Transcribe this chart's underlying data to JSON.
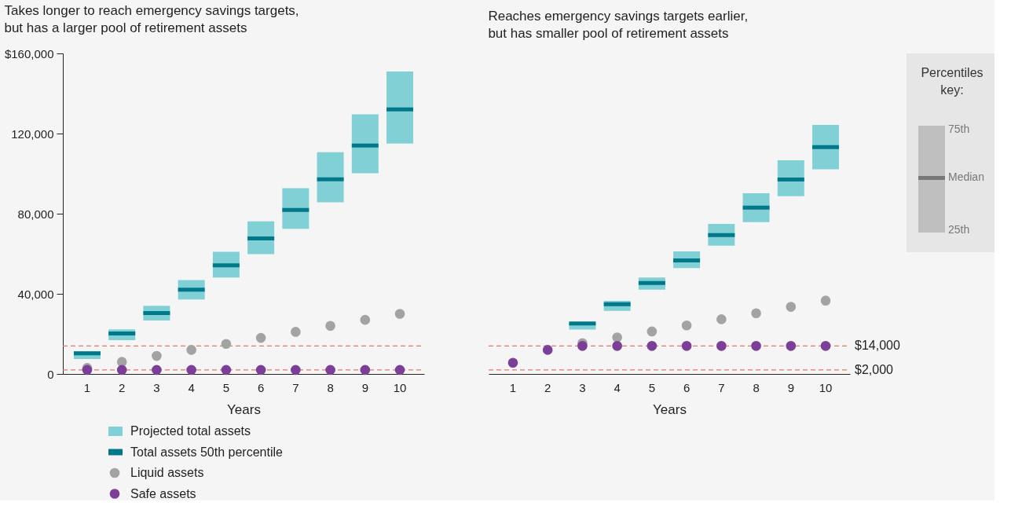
{
  "chart_data": [
    {
      "type": "box",
      "title": "Takes longer to reach emergency savings targets, but has a larger pool of retirement assets",
      "xlabel": "Years",
      "categories": [
        "1",
        "2",
        "3",
        "4",
        "5",
        "6",
        "7",
        "8",
        "9",
        "10"
      ],
      "series": [
        {
          "name": "Projected total assets",
          "type": "box",
          "color": "#81d0d6",
          "boxes": [
            {
              "low": 7500,
              "q1": 7500,
              "median": 10300,
              "q3": 11400,
              "high": 11400
            },
            {
              "low": 16900,
              "q1": 16900,
              "median": 20200,
              "q3": 22300,
              "high": 22300
            },
            {
              "low": 26700,
              "q1": 26700,
              "median": 30400,
              "q3": 34000,
              "high": 34000
            },
            {
              "low": 37200,
              "q1": 37200,
              "median": 42100,
              "q3": 46900,
              "high": 46900
            },
            {
              "low": 48100,
              "q1": 48100,
              "median": 54200,
              "q3": 61000,
              "high": 61000
            },
            {
              "low": 59800,
              "q1": 59800,
              "median": 67600,
              "q3": 76200,
              "high": 76200
            },
            {
              "low": 72500,
              "q1": 72500,
              "median": 81900,
              "q3": 92700,
              "high": 92700
            },
            {
              "low": 85700,
              "q1": 85700,
              "median": 97200,
              "q3": 110700,
              "high": 110700
            },
            {
              "low": 100200,
              "q1": 100200,
              "median": 114000,
              "q3": 129600,
              "high": 129600
            },
            {
              "low": 115000,
              "q1": 115000,
              "median": 132100,
              "q3": 151000,
              "high": 151000
            }
          ]
        },
        {
          "name": "Liquid assets",
          "type": "scatter",
          "marker": "circle",
          "color": "#a3a3a3",
          "values": [
            3000,
            6000,
            9000,
            12000,
            15000,
            18000,
            21000,
            24000,
            27000,
            30000
          ]
        },
        {
          "name": "Safe assets",
          "type": "scatter",
          "marker": "circle",
          "color": "#7b3f98",
          "values": [
            2000,
            2000,
            2000,
            2000,
            2000,
            2000,
            2000,
            2000,
            2000,
            2000
          ]
        }
      ],
      "annotations": [
        "Total assets 50th percentile"
      ],
      "ylim": [
        0,
        160000
      ],
      "yticks": [
        0,
        {
          "value": 40000,
          "label": "40,000"
        },
        {
          "value": 80000,
          "label": "80,000"
        },
        {
          "value": 120000,
          "label": "120,000"
        },
        {
          "value": 160000,
          "label": "$160,000"
        }
      ],
      "ref_lines": [
        {
          "axis": "y",
          "value": 14000,
          "color": "#e07b6e",
          "line_style": "dashed"
        },
        {
          "axis": "y",
          "value": 2000,
          "color": "#e07b6e",
          "line_style": "dashed"
        }
      ],
      "legend": "bottom"
    },
    {
      "type": "box",
      "title": "Reaches emergency savings targets earlier, but has smaller pool of retirement assets",
      "xlabel": "Years",
      "categories": [
        "1",
        "2",
        "3",
        "4",
        "5",
        "6",
        "7",
        "8",
        "9",
        "10"
      ],
      "series": [
        {
          "type": "box",
          "color": "#81d0d6",
          "boxes": [
            null,
            null,
            {
              "low": 22200,
              "q1": 22200,
              "median": 25200,
              "q3": 25600,
              "high": 25600
            },
            {
              "low": 31500,
              "q1": 31500,
              "median": 34800,
              "q3": 36500,
              "high": 36500
            },
            {
              "low": 42100,
              "q1": 42100,
              "median": 45400,
              "q3": 48100,
              "high": 48100
            },
            {
              "low": 52800,
              "q1": 52800,
              "median": 56700,
              "q3": 61200,
              "high": 61200
            },
            {
              "low": 64000,
              "q1": 64000,
              "median": 69300,
              "q3": 74900,
              "high": 74900
            },
            {
              "low": 75800,
              "q1": 75800,
              "median": 83000,
              "q3": 90200,
              "high": 90200
            },
            {
              "low": 88700,
              "q1": 88700,
              "median": 97100,
              "q3": 106700,
              "high": 106700
            },
            {
              "low": 102200,
              "q1": 102200,
              "median": 113200,
              "q3": 124300,
              "high": 124300
            }
          ]
        },
        {
          "type": "scatter",
          "marker": "circle",
          "color": "#a3a3a3",
          "values": [
            null,
            null,
            15400,
            18200,
            21200,
            24200,
            27300,
            30300,
            33500,
            36600
          ]
        },
        {
          "type": "scatter",
          "marker": "circle",
          "color": "#7b3f98",
          "values": [
            5600,
            12000,
            14000,
            14000,
            14000,
            14000,
            14000,
            14000,
            14000,
            14000
          ]
        }
      ],
      "ylim": [
        0,
        160000
      ],
      "tick_labels": "x",
      "ref_lines": [
        {
          "axis": "y",
          "value": 14000,
          "label": "$14,000",
          "color": "#e07b6e",
          "line_style": "dashed"
        },
        {
          "axis": "y",
          "value": 2000,
          "label": "$2,000",
          "color": "#e07b6e",
          "line_style": "dashed"
        }
      ]
    },
    {
      "type": "other",
      "title": "Percentiles key:",
      "annotations": [
        "75th",
        "Median",
        "25th"
      ]
    }
  ]
}
